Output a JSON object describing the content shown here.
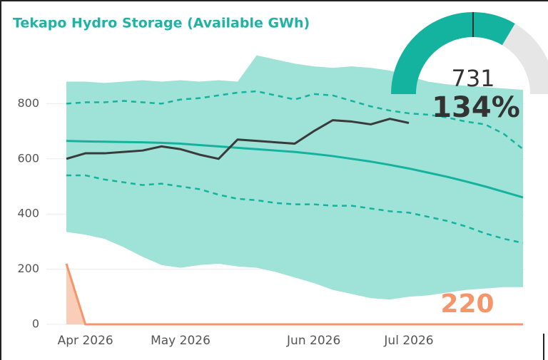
{
  "chart_data": {
    "type": "line",
    "title": "Tekapo Hydro Storage (Available GWh)",
    "categories": [
      null,
      "Apr 2026",
      null,
      null,
      null,
      null,
      "May 2026",
      null,
      null,
      null,
      null,
      null,
      null,
      "Jun 2026",
      null,
      null,
      null,
      null,
      "Jul 2026",
      null,
      null,
      null,
      null,
      null,
      null
    ],
    "ylim": [
      0,
      1000
    ],
    "yticks": [
      0,
      200,
      400,
      600,
      800
    ],
    "grid": true,
    "band": {
      "color": "#9fe2d8",
      "max": [
        880,
        880,
        875,
        880,
        885,
        880,
        885,
        880,
        885,
        880,
        975,
        960,
        945,
        935,
        930,
        935,
        930,
        920,
        900,
        880,
        870,
        865,
        860,
        855,
        850
      ],
      "min": [
        335,
        325,
        310,
        280,
        245,
        215,
        205,
        215,
        220,
        210,
        205,
        190,
        170,
        150,
        125,
        110,
        95,
        90,
        100,
        105,
        115,
        125,
        130,
        135,
        135
      ]
    },
    "series": [
      {
        "color": "#14b3a0",
        "dash": true,
        "values": [
          800,
          805,
          805,
          810,
          805,
          800,
          815,
          820,
          830,
          840,
          845,
          830,
          815,
          835,
          830,
          810,
          790,
          775,
          765,
          760,
          750,
          735,
          725,
          690,
          635
        ]
      },
      {
        "color": "#14b3a0",
        "dash": true,
        "values": [
          540,
          540,
          525,
          515,
          505,
          510,
          500,
          490,
          470,
          455,
          450,
          440,
          435,
          435,
          430,
          430,
          420,
          410,
          405,
          390,
          375,
          355,
          330,
          310,
          295
        ]
      },
      {
        "color": "#14b3a0",
        "dash": false,
        "values": [
          665,
          663,
          662,
          661,
          660,
          658,
          655,
          650,
          645,
          640,
          635,
          630,
          625,
          618,
          610,
          600,
          590,
          578,
          565,
          550,
          535,
          518,
          500,
          480,
          460
        ]
      },
      {
        "color": "#3a3a3a",
        "dash": false,
        "values": [
          600,
          620,
          620,
          625,
          630,
          645,
          635,
          615,
          600,
          670,
          665,
          660,
          655,
          700,
          740,
          735,
          725,
          745,
          730,
          null,
          null,
          null,
          null,
          null,
          null
        ]
      },
      {
        "color": "#f4956a",
        "dash": false,
        "fill": "#f9cdb8",
        "values": [
          220,
          0,
          0,
          0,
          0,
          0,
          0,
          0,
          0,
          0,
          0,
          0,
          0,
          0,
          0,
          0,
          0,
          0,
          0,
          0,
          0,
          0,
          0,
          0,
          0
        ]
      }
    ],
    "callout": 220,
    "callout_color": "#f4956a",
    "gauge": {
      "value": 731,
      "min": 0,
      "max": 1090,
      "target": 545,
      "ratio": 134,
      "ratio_label": "134%",
      "color": "#14b3a0",
      "track": "#e6e6e6"
    }
  }
}
